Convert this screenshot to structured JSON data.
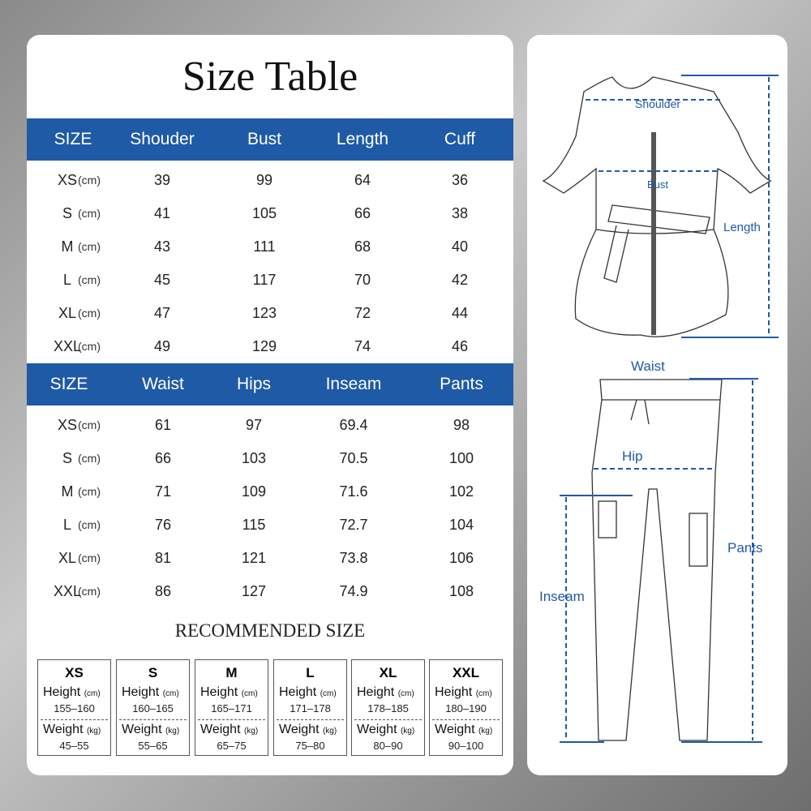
{
  "title": "Size Table",
  "top_table": {
    "headers": [
      "SIZE",
      "Shouder",
      "Bust",
      "Length",
      "Cuff"
    ],
    "unit": "(cm)",
    "rows": [
      [
        "XS",
        "39",
        "99",
        "64",
        "36"
      ],
      [
        "S",
        "41",
        "105",
        "66",
        "38"
      ],
      [
        "M",
        "43",
        "111",
        "68",
        "40"
      ],
      [
        "L",
        "45",
        "117",
        "70",
        "42"
      ],
      [
        "XL",
        "47",
        "123",
        "72",
        "44"
      ],
      [
        "XXL",
        "49",
        "129",
        "74",
        "46"
      ]
    ]
  },
  "bottom_table": {
    "headers": [
      "SIZE",
      "Waist",
      "Hips",
      "Inseam",
      "Pants"
    ],
    "unit": "(cm)",
    "rows": [
      [
        "XS",
        "61",
        "97",
        "69.4",
        "98"
      ],
      [
        "S",
        "66",
        "103",
        "70.5",
        "100"
      ],
      [
        "M",
        "71",
        "109",
        "71.6",
        "102"
      ],
      [
        "L",
        "76",
        "115",
        "72.7",
        "104"
      ],
      [
        "XL",
        "81",
        "121",
        "73.8",
        "106"
      ],
      [
        "XXL",
        "86",
        "127",
        "74.9",
        "108"
      ]
    ]
  },
  "recommended": {
    "title": "RECOMMENDED SIZE",
    "height_label": "Height",
    "height_unit": "(cm)",
    "weight_label": "Weight",
    "weight_unit": "(kg)",
    "sizes": [
      {
        "size": "XS",
        "height": "155–160",
        "weight": "45–55"
      },
      {
        "size": "S",
        "height": "160–165",
        "weight": "55–65"
      },
      {
        "size": "M",
        "height": "165–171",
        "weight": "65–75"
      },
      {
        "size": "L",
        "height": "171–178",
        "weight": "75–80"
      },
      {
        "size": "XL",
        "height": "178–185",
        "weight": "80–90"
      },
      {
        "size": "XXL",
        "height": "180–190",
        "weight": "90–100"
      }
    ]
  },
  "diagram": {
    "shoulder": "Shoulder",
    "bust": "Bust",
    "length": "Length",
    "waist": "Waist",
    "hip": "Hip",
    "inseam": "Inseam",
    "pants": "Pants"
  },
  "colors": {
    "accent": "#1f5aa6"
  }
}
